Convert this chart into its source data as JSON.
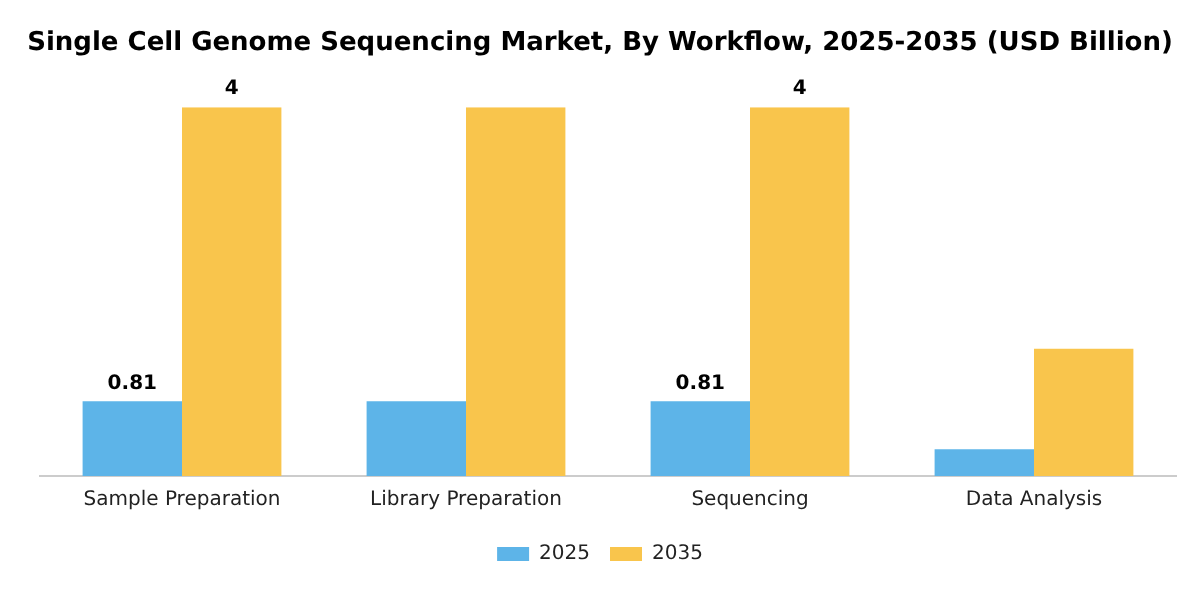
{
  "chart_data": {
    "type": "bar",
    "title": "Single Cell Genome Sequencing Market, By Workflow, 2025-2035 (USD Billion)",
    "categories": [
      "Sample Preparation",
      "Library Preparation",
      "Sequencing",
      "Data Analysis"
    ],
    "series": [
      {
        "name": "2025",
        "color": "#5db4e8",
        "values": [
          0.81,
          0.81,
          0.81,
          0.29
        ],
        "value_labels": [
          "0.81",
          null,
          "0.81",
          null
        ]
      },
      {
        "name": "2035",
        "color": "#f9c54c",
        "values": [
          4,
          4,
          4,
          1.38
        ],
        "value_labels": [
          "4",
          null,
          "4",
          null
        ]
      }
    ],
    "legend": "bottom",
    "grid": false
  }
}
